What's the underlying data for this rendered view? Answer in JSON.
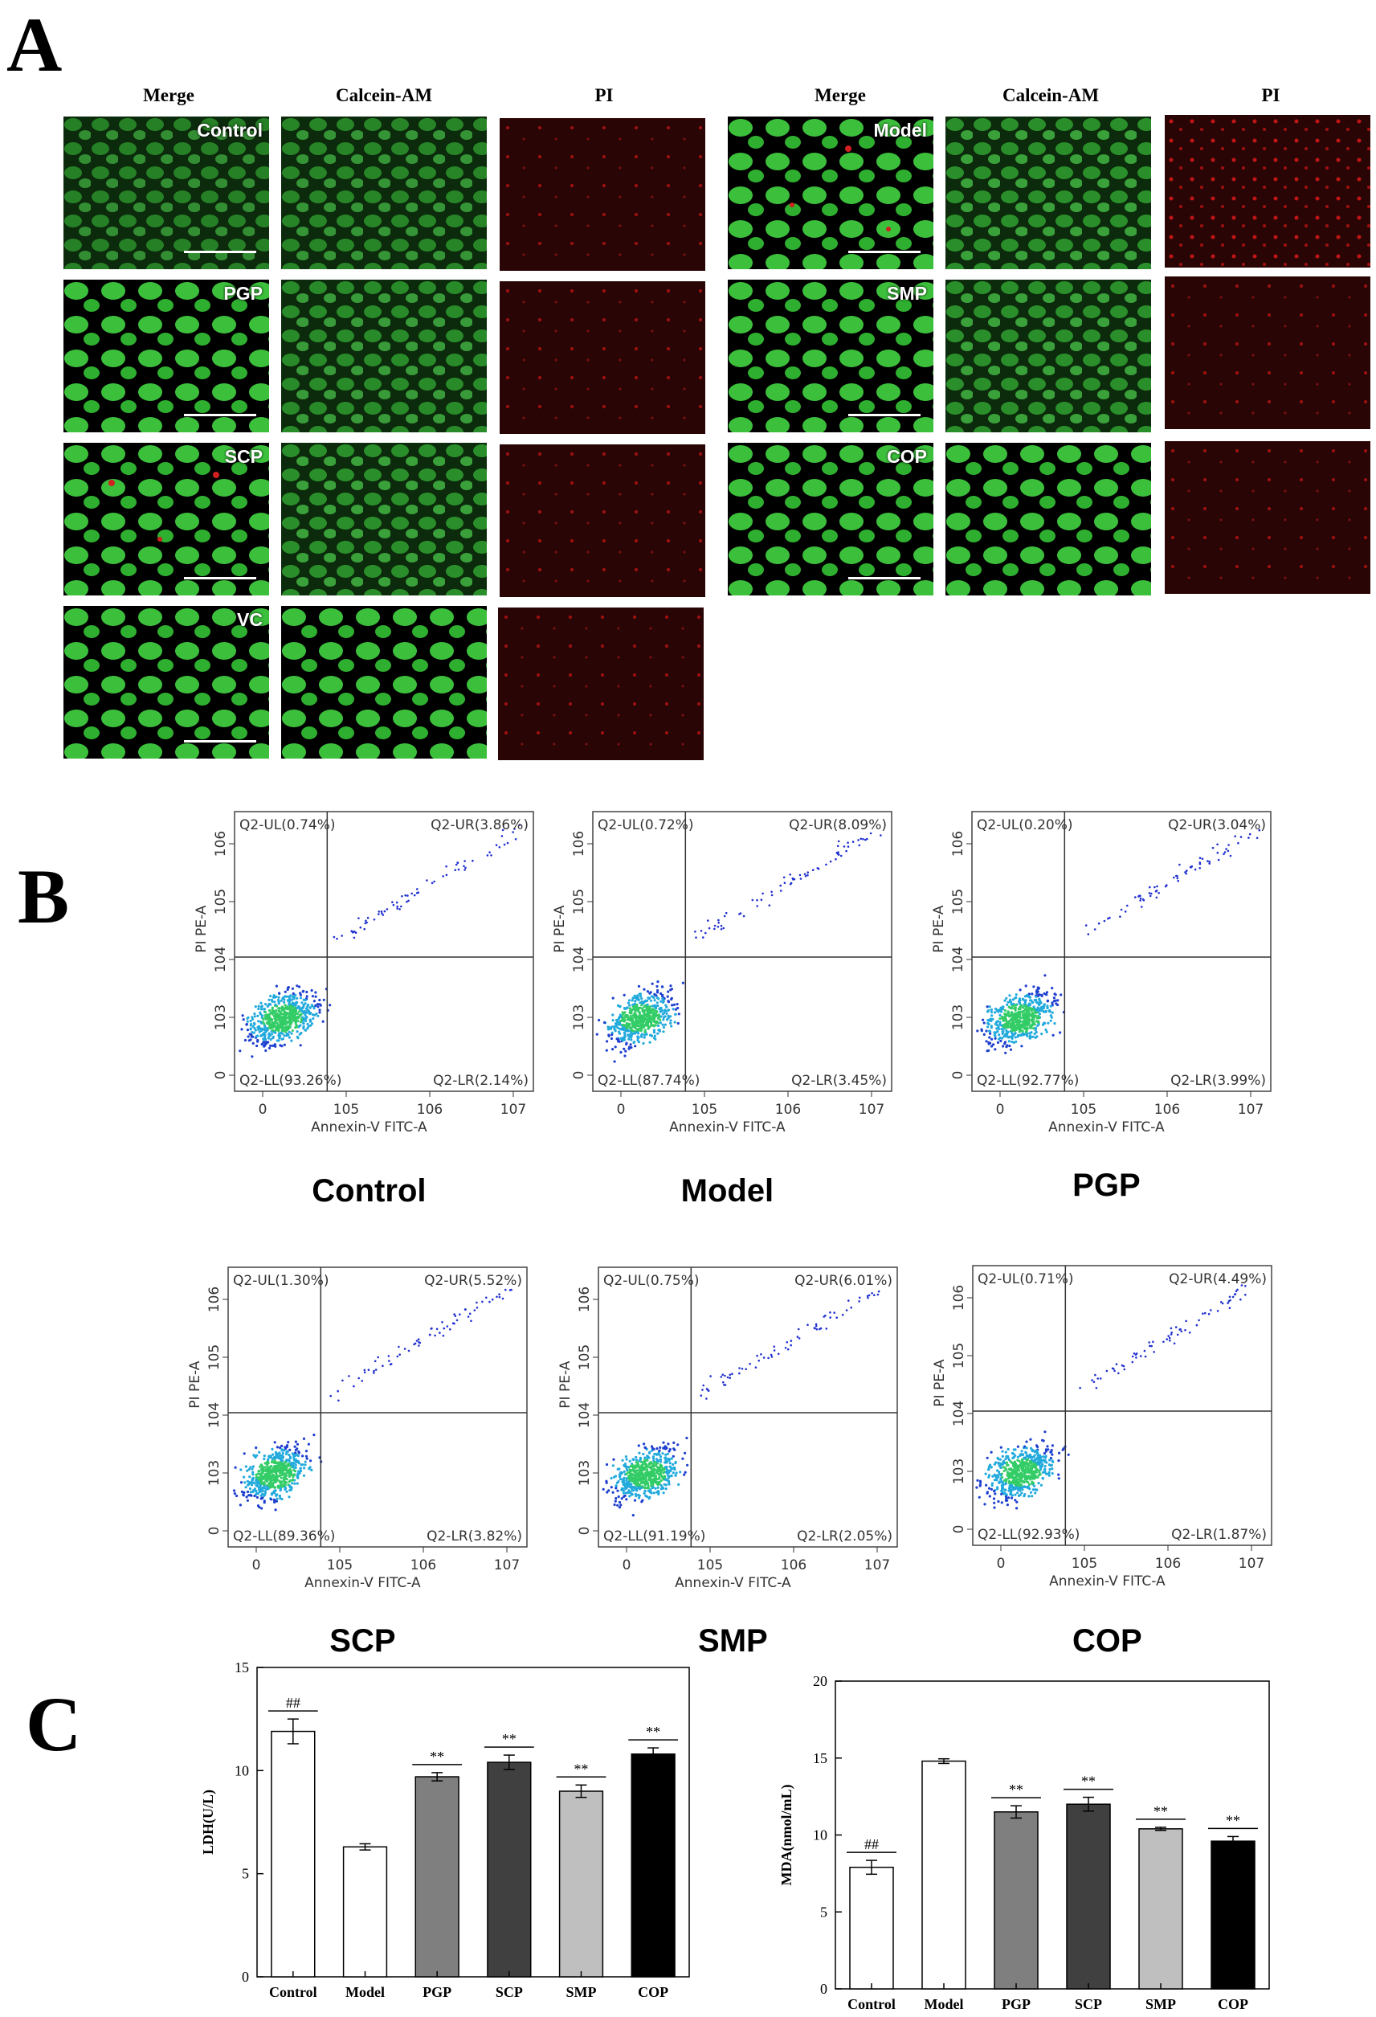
{
  "panels": {
    "a": "A",
    "b": "B",
    "c": "C"
  },
  "panel_a": {
    "col_headers": [
      "Merge",
      "Calcein-AM",
      "PI",
      "Merge",
      "Calcein-AM",
      "PI"
    ],
    "left_groups": [
      "Control",
      "PGP",
      "SCP",
      "VC"
    ],
    "right_groups": [
      "Model",
      "SMP",
      "COP"
    ]
  },
  "panel_b": {
    "plots": [
      {
        "title": "Control",
        "ul": "Q2-UL(0.74%)",
        "ur": "Q2-UR(3.86%)",
        "ll": "Q2-LL(93.26%)",
        "lr": "Q2-LR(2.14%)"
      },
      {
        "title": "Model",
        "ul": "Q2-UL(0.72%)",
        "ur": "Q2-UR(8.09%)",
        "ll": "Q2-LL(87.74%)",
        "lr": "Q2-LR(3.45%)"
      },
      {
        "title": "PGP",
        "ul": "Q2-UL(0.20%)",
        "ur": "Q2-UR(3.04%)",
        "ll": "Q2-LL(92.77%)",
        "lr": "Q2-LR(3.99%)"
      },
      {
        "title": "SCP",
        "ul": "Q2-UL(1.30%)",
        "ur": "Q2-UR(5.52%)",
        "ll": "Q2-LL(89.36%)",
        "lr": "Q2-LR(3.82%)"
      },
      {
        "title": "SMP",
        "ul": "Q2-UL(0.75%)",
        "ur": "Q2-UR(6.01%)",
        "ll": "Q2-LL(91.19%)",
        "lr": "Q2-LR(2.05%)"
      },
      {
        "title": "COP",
        "ul": "Q2-UL(0.71%)",
        "ur": "Q2-UR(4.49%)",
        "ll": "Q2-LL(92.93%)",
        "lr": "Q2-LR(1.87%)"
      }
    ],
    "xlabel": "Annexin-V FITC-A",
    "ylabel": "PI PE-A",
    "x_ticks": [
      "0",
      "10^5",
      "10^6",
      "10^7"
    ],
    "y_ticks": [
      "0",
      "10^3",
      "10^4",
      "10^5",
      "10^6"
    ]
  },
  "chart_data": [
    {
      "type": "bar",
      "categories": [
        "Control",
        "Model",
        "PGP",
        "SCP",
        "SMP",
        "COP"
      ],
      "values": [
        11.9,
        6.3,
        9.7,
        10.4,
        9.0,
        10.8
      ],
      "errors": [
        0.6,
        0.15,
        0.2,
        0.35,
        0.3,
        0.3
      ],
      "significance": [
        "##",
        "",
        "**",
        "**",
        "**",
        "**"
      ],
      "ylabel": "LDH(U/L)",
      "ylim": [
        0,
        15
      ],
      "yticks": [
        0,
        5,
        10,
        15
      ],
      "colors": [
        "#ffffff",
        "#ffffff",
        "#7f7f7f",
        "#404040",
        "#bfbfbf",
        "#000000"
      ]
    },
    {
      "type": "bar",
      "categories": [
        "Control",
        "Model",
        "PGP",
        "SCP",
        "SMP",
        "COP"
      ],
      "values": [
        7.9,
        14.8,
        11.5,
        12.0,
        10.4,
        9.6
      ],
      "errors": [
        0.45,
        0.15,
        0.4,
        0.45,
        0.1,
        0.3
      ],
      "significance": [
        "##",
        "",
        "**",
        "**",
        "**",
        "**"
      ],
      "ylabel": "MDA(nmol/mL)",
      "ylim": [
        0,
        20
      ],
      "yticks": [
        0,
        5,
        10,
        15,
        20
      ],
      "colors": [
        "#ffffff",
        "#ffffff",
        "#7f7f7f",
        "#404040",
        "#bfbfbf",
        "#000000"
      ]
    }
  ]
}
